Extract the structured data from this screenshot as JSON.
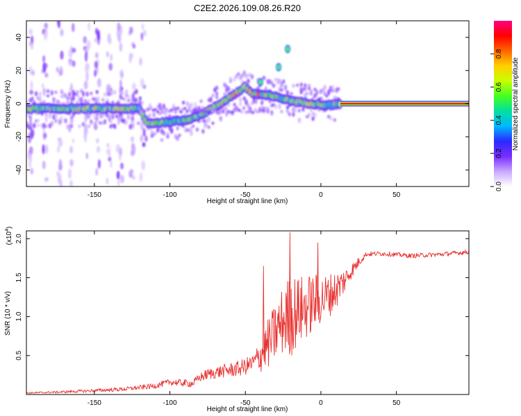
{
  "title": "C2E2.2026.109.08.26.R20",
  "chart_data": [
    {
      "type": "heatmap",
      "name": "spectrogram",
      "xlabel": "Height of straight line (km)",
      "ylabel": "Frequency (Hz)",
      "xlim": [
        -195,
        98
      ],
      "ylim": [
        -50,
        50
      ],
      "xticks": [
        -150,
        -100,
        -50,
        0,
        50
      ],
      "yticks": [
        -40,
        -20,
        0,
        20,
        40
      ],
      "colorbar": {
        "label": "Normalized spectral amplitude",
        "range": [
          0,
          1
        ],
        "ticks": [
          0.0,
          0.2,
          0.4,
          0.6,
          0.8
        ],
        "colormap": [
          "#ffffff",
          "#c8a8ff",
          "#7a2cff",
          "#2a2aff",
          "#00b8ff",
          "#00e0a0",
          "#44ff22",
          "#c8ff00",
          "#ffd000",
          "#ff6600",
          "#ff0000",
          "#ff0080"
        ]
      },
      "ridge": [
        {
          "x": -195,
          "f": -3
        },
        {
          "x": -175,
          "f": -3
        },
        {
          "x": -160,
          "f": -3
        },
        {
          "x": -145,
          "f": -3
        },
        {
          "x": -130,
          "f": -3
        },
        {
          "x": -120,
          "f": -3
        },
        {
          "x": -115,
          "f": -12
        },
        {
          "x": -100,
          "f": -11
        },
        {
          "x": -90,
          "f": -10
        },
        {
          "x": -80,
          "f": -7
        },
        {
          "x": -70,
          "f": -2
        },
        {
          "x": -60,
          "f": 4
        },
        {
          "x": -50,
          "f": 10
        },
        {
          "x": -45,
          "f": 6
        },
        {
          "x": -35,
          "f": 5
        },
        {
          "x": -25,
          "f": 3
        },
        {
          "x": -15,
          "f": 1
        },
        {
          "x": -5,
          "f": 0
        },
        {
          "x": 5,
          "f": -1
        },
        {
          "x": 13,
          "f": 0
        },
        {
          "x": 20,
          "f": 0
        },
        {
          "x": 40,
          "f": 0
        },
        {
          "x": 60,
          "f": 0
        },
        {
          "x": 80,
          "f": 0
        },
        {
          "x": 98,
          "f": 0
        }
      ],
      "branches": [
        {
          "x": -28,
          "f": 22
        },
        {
          "x": -22,
          "f": 33
        },
        {
          "x": -40,
          "f": 13
        }
      ],
      "clutter_columns_x": [
        -192,
        -183,
        -173,
        -165,
        -155,
        -148,
        -140,
        -133,
        -125,
        -118
      ]
    },
    {
      "type": "line",
      "name": "snr",
      "xlabel": "Height of straight line (km)",
      "ylabel": "SNR (10 * v/v)",
      "y_multiplier": "(x10",
      "y_multiplier_exp": "4",
      "xlim": [
        -195,
        98
      ],
      "ylim": [
        0,
        2.1
      ],
      "xticks": [
        -150,
        -100,
        -50,
        0,
        50
      ],
      "yticks": [
        0.5,
        1.0,
        1.5,
        2.0
      ],
      "ytick_labels": [
        "0.5",
        "1.0",
        "1.5",
        "2.0"
      ],
      "color": "#e8302e",
      "trend": {
        "x": [
          -195,
          -175,
          -150,
          -130,
          -110,
          -100,
          -85,
          -80,
          -75,
          -65,
          -55,
          -50,
          -45,
          -40,
          -35,
          -30,
          -25,
          -20,
          -15,
          -10,
          -5,
          0,
          5,
          10,
          15,
          20,
          25,
          30,
          40,
          60,
          80,
          98
        ],
        "y": [
          0.02,
          0.03,
          0.05,
          0.07,
          0.11,
          0.16,
          0.14,
          0.22,
          0.26,
          0.3,
          0.33,
          0.36,
          0.4,
          0.5,
          0.65,
          0.8,
          0.95,
          1.02,
          1.07,
          1.12,
          1.18,
          1.22,
          1.27,
          1.34,
          1.45,
          1.58,
          1.7,
          1.8,
          1.81,
          1.78,
          1.8,
          1.83
        ]
      },
      "noise": {
        "x": [
          -195,
          -120,
          -85,
          -75,
          -55,
          -45,
          -35,
          -25,
          -20,
          -15,
          -10,
          -5,
          0,
          10,
          20,
          30,
          98
        ],
        "amp": [
          0.01,
          0.03,
          0.05,
          0.07,
          0.1,
          0.12,
          0.32,
          0.45,
          0.55,
          0.45,
          0.42,
          0.38,
          0.32,
          0.25,
          0.1,
          0.03,
          0.03
        ]
      },
      "spikes": [
        {
          "x": -20.5,
          "y": 2.08
        },
        {
          "x": -2,
          "y": 1.95
        },
        {
          "x": -38,
          "y": 1.65
        }
      ]
    }
  ]
}
